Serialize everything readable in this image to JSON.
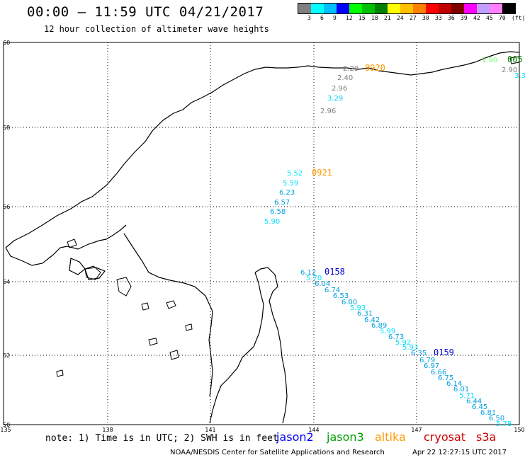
{
  "header": {
    "title": "00:00 – 11:59 UTC 04/21/2017",
    "subtitle": "12 hour collection of altimeter wave heights"
  },
  "legend": {
    "colors": [
      "#808080",
      "#00ffff",
      "#00c0ff",
      "#0000ff",
      "#00ff00",
      "#00c000",
      "#008000",
      "#ffff00",
      "#ffc000",
      "#ff8000",
      "#ff0000",
      "#c00000",
      "#800000",
      "#ff00ff",
      "#c0a0ff",
      "#ff80ff",
      "#000000"
    ],
    "labels": [
      "3",
      "6",
      "9",
      "12",
      "15",
      "18",
      "21",
      "24",
      "27",
      "30",
      "33",
      "36",
      "39",
      "42",
      "45",
      "70",
      "(ft)"
    ]
  },
  "axes": {
    "lon_ticks": [
      "135",
      "138",
      "141",
      "144",
      "147",
      "150"
    ],
    "lat_ticks": [
      "60",
      "58",
      "56",
      "54",
      "52",
      "50"
    ]
  },
  "passes": [
    {
      "label": "0920",
      "color": "#ff9900",
      "values": [
        "2.29",
        "2.40",
        "2.96",
        "3.29",
        "2.96"
      ],
      "value_colors": [
        "#808080",
        "#808080",
        "#808080",
        "#00ccff",
        "#808080"
      ]
    },
    {
      "label": "0921",
      "color": "#ff9900",
      "values": [
        "5.52",
        "5.59",
        "6.23",
        "6.57",
        "6.58",
        "5.90"
      ],
      "value_colors": [
        "#00e0ff",
        "#00e0ff",
        "#00a0e0",
        "#00a0e0",
        "#00a0e0",
        "#00e0ff"
      ]
    },
    {
      "label": "0158",
      "color": "#0000cc",
      "values": [
        "6.12",
        "5.70",
        "6.04",
        "6.74",
        "6.53",
        "6.00",
        "5.93",
        "6.31",
        "6.42",
        "6.89",
        "5.99",
        "6.73",
        "5.92",
        "5.93",
        "6.35"
      ],
      "value_colors": [
        "#00a0e0",
        "#00e0ff",
        "#00a0e0",
        "#00a0e0",
        "#00a0e0",
        "#00a0e0",
        "#00e0ff",
        "#00a0e0",
        "#00a0e0",
        "#00a0e0",
        "#00e0ff",
        "#00a0e0",
        "#00e0ff",
        "#00e0ff",
        "#00a0e0"
      ]
    },
    {
      "label": "0159",
      "color": "#0000cc",
      "values": [
        "6.79",
        "6.97",
        "6.66",
        "6.75",
        "6.14",
        "6.01",
        "5.71",
        "6.44",
        "6.45",
        "6.81",
        "6.50",
        "5.78"
      ],
      "value_colors": [
        "#00a0e0",
        "#00a0e0",
        "#00a0e0",
        "#00a0e0",
        "#00a0e0",
        "#00a0e0",
        "#00e0ff",
        "#00a0e0",
        "#00a0e0",
        "#00a0e0",
        "#00a0e0",
        "#00e0ff"
      ]
    },
    {
      "label": "005",
      "color": "#008000",
      "values": [
        "1.90",
        "2.90",
        "3.3"
      ],
      "value_colors": [
        "#66ff66",
        "#808080",
        "#00e0ff"
      ]
    }
  ],
  "note": "note: 1) Time is in UTC; 2) SWH is in feet",
  "satellites": [
    {
      "name": "jason2",
      "color": "#0000ff"
    },
    {
      "name": "jason3",
      "color": "#00a000"
    },
    {
      "name": "altika",
      "color": "#ff9900"
    },
    {
      "name": "cryosat",
      "color": "#cc0000"
    },
    {
      "name": "s3a",
      "color": "#cc0000"
    }
  ],
  "footer": {
    "credit": "NOAA/NESDIS Center for Satellite Applications and Research",
    "generated": "Apr 22 12:27:15 UTC 2017"
  }
}
